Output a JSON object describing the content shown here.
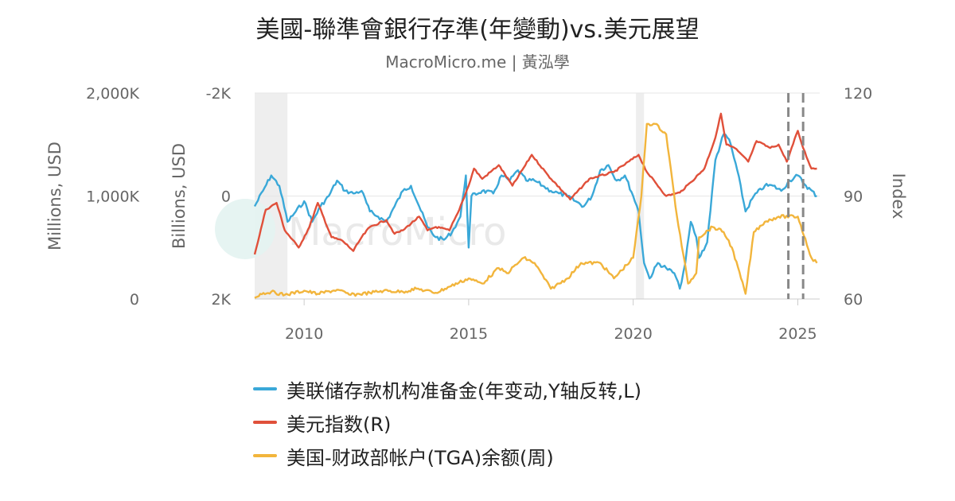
{
  "title": "美國-聯準會銀行存準(年變動)vs.美元展望",
  "subtitle": "MacroMicro.me | 黃泓學",
  "watermark": "MacroMicro",
  "colors": {
    "reserves": "#3aa8d8",
    "dxy": "#e0503a",
    "tga": "#f2b53c",
    "grid": "#e6e6e6",
    "recession": "#eeeeee",
    "axis_text": "#666666"
  },
  "chart_data": {
    "type": "line",
    "x_range": [
      "2008-07-01",
      "2025-09-01"
    ],
    "x_ticks": [
      "2010",
      "2015",
      "2020",
      "2025"
    ],
    "axes": {
      "left_outer": {
        "label": "Millions, USD",
        "range": [
          0,
          2000000
        ],
        "ticks": [
          "0",
          "1,000K",
          "2,000K"
        ]
      },
      "left_inner": {
        "label": "Billions, USD",
        "range": [
          -2000,
          2000
        ],
        "reversed": true,
        "ticks": [
          "-2K",
          "0",
          "2K"
        ]
      },
      "right": {
        "label": "Index",
        "range": [
          60,
          120
        ],
        "ticks": [
          "60",
          "90",
          "120"
        ]
      }
    },
    "recession_bands": [
      [
        "2008-07-01",
        "2009-06-30"
      ],
      [
        "2020-02-01",
        "2020-04-30"
      ]
    ],
    "vertical_markers": [
      "2024-09-18",
      "2025-03-01"
    ],
    "series": [
      {
        "name": "美联储存款机构准备金(年变动,Y轴反转,L)",
        "axis": "left_inner",
        "color": "#3aa8d8",
        "points": [
          [
            "2008-07",
            200
          ],
          [
            "2008-10",
            -100
          ],
          [
            "2009-01",
            -400
          ],
          [
            "2009-04",
            -200
          ],
          [
            "2009-07",
            500
          ],
          [
            "2009-10",
            300
          ],
          [
            "2010-01",
            100
          ],
          [
            "2010-04",
            500
          ],
          [
            "2010-07",
            200
          ],
          [
            "2010-10",
            0
          ],
          [
            "2011-01",
            -300
          ],
          [
            "2011-04",
            -100
          ],
          [
            "2011-07",
            -50
          ],
          [
            "2011-10",
            -100
          ],
          [
            "2012-01",
            300
          ],
          [
            "2012-04",
            400
          ],
          [
            "2012-07",
            500
          ],
          [
            "2012-10",
            200
          ],
          [
            "2013-01",
            -100
          ],
          [
            "2013-04",
            -200
          ],
          [
            "2013-07",
            200
          ],
          [
            "2013-10",
            600
          ],
          [
            "2014-01",
            800
          ],
          [
            "2014-04",
            850
          ],
          [
            "2014-07",
            700
          ],
          [
            "2014-10",
            400
          ],
          [
            "2014-12",
            -400
          ],
          [
            "2015-01",
            1000
          ],
          [
            "2015-02",
            0
          ],
          [
            "2015-06",
            -100
          ],
          [
            "2015-10",
            -50
          ],
          [
            "2016-01",
            -400
          ],
          [
            "2016-04",
            -300
          ],
          [
            "2016-07",
            -500
          ],
          [
            "2016-10",
            -300
          ],
          [
            "2017-01",
            -300
          ],
          [
            "2017-04",
            -200
          ],
          [
            "2017-07",
            -100
          ],
          [
            "2017-10",
            -50
          ],
          [
            "2018-01",
            0
          ],
          [
            "2018-04",
            100
          ],
          [
            "2018-07",
            200
          ],
          [
            "2018-10",
            0
          ],
          [
            "2019-01",
            -500
          ],
          [
            "2019-04",
            -600
          ],
          [
            "2019-07",
            -300
          ],
          [
            "2019-10",
            -400
          ],
          [
            "2020-01",
            0
          ],
          [
            "2020-03",
            300
          ],
          [
            "2020-05",
            1300
          ],
          [
            "2020-07",
            1600
          ],
          [
            "2020-10",
            1300
          ],
          [
            "2021-01",
            1400
          ],
          [
            "2021-04",
            1500
          ],
          [
            "2021-06",
            1800
          ],
          [
            "2021-08",
            1300
          ],
          [
            "2021-10",
            500
          ],
          [
            "2021-12",
            800
          ],
          [
            "2022-01",
            1200
          ],
          [
            "2022-04",
            900
          ],
          [
            "2022-07",
            -700
          ],
          [
            "2022-10",
            -1200
          ],
          [
            "2022-12",
            -1100
          ],
          [
            "2023-03",
            -500
          ],
          [
            "2023-06",
            300
          ],
          [
            "2023-09",
            0
          ],
          [
            "2024-01",
            -200
          ],
          [
            "2024-04",
            -200
          ],
          [
            "2024-07",
            -100
          ],
          [
            "2024-10",
            -300
          ],
          [
            "2025-01",
            -400
          ],
          [
            "2025-04",
            -200
          ],
          [
            "2025-08",
            0
          ]
        ]
      },
      {
        "name": "美元指数(R)",
        "axis": "right",
        "color": "#e0503a",
        "points": [
          [
            "2008-07",
            73
          ],
          [
            "2008-11",
            86
          ],
          [
            "2009-03",
            88
          ],
          [
            "2009-06",
            80
          ],
          [
            "2009-11",
            75
          ],
          [
            "2010-03",
            81
          ],
          [
            "2010-06",
            88
          ],
          [
            "2010-11",
            78
          ],
          [
            "2011-03",
            77
          ],
          [
            "2011-07",
            74
          ],
          [
            "2011-10",
            78
          ],
          [
            "2012-01",
            81
          ],
          [
            "2012-07",
            83
          ],
          [
            "2012-10",
            79
          ],
          [
            "2013-01",
            80
          ],
          [
            "2013-07",
            84
          ],
          [
            "2013-10",
            80
          ],
          [
            "2014-01",
            81
          ],
          [
            "2014-06",
            80
          ],
          [
            "2014-09",
            85
          ],
          [
            "2015-01",
            93
          ],
          [
            "2015-03",
            98
          ],
          [
            "2015-06",
            95
          ],
          [
            "2015-12",
            99
          ],
          [
            "2016-05",
            93
          ],
          [
            "2016-12",
            102
          ],
          [
            "2017-06",
            96
          ],
          [
            "2018-02",
            89
          ],
          [
            "2018-09",
            95
          ],
          [
            "2019-06",
            97
          ],
          [
            "2020-03",
            102
          ],
          [
            "2020-06",
            97
          ],
          [
            "2021-01",
            90
          ],
          [
            "2021-06",
            91
          ],
          [
            "2021-10",
            94
          ],
          [
            "2022-03",
            98
          ],
          [
            "2022-07",
            107
          ],
          [
            "2022-09",
            114
          ],
          [
            "2022-11",
            105
          ],
          [
            "2023-02",
            104
          ],
          [
            "2023-07",
            100
          ],
          [
            "2023-10",
            106
          ],
          [
            "2024-03",
            104
          ],
          [
            "2024-06",
            105
          ],
          [
            "2024-09",
            100
          ],
          [
            "2025-01",
            109
          ],
          [
            "2025-03",
            104
          ],
          [
            "2025-06",
            98
          ],
          [
            "2025-08",
            98
          ]
        ]
      },
      {
        "name": "美国-财政部帐户(TGA)余额(周)",
        "axis": "left_outer",
        "color": "#f2b53c",
        "points": [
          [
            "2008-07",
            10000
          ],
          [
            "2008-09",
            50000
          ],
          [
            "2009-01",
            70000
          ],
          [
            "2009-06",
            40000
          ],
          [
            "2010-01",
            80000
          ],
          [
            "2010-06",
            50000
          ],
          [
            "2011-01",
            90000
          ],
          [
            "2011-06",
            40000
          ],
          [
            "2012-01",
            60000
          ],
          [
            "2012-06",
            80000
          ],
          [
            "2013-01",
            70000
          ],
          [
            "2013-06",
            100000
          ],
          [
            "2014-01",
            60000
          ],
          [
            "2014-06",
            120000
          ],
          [
            "2015-01",
            200000
          ],
          [
            "2015-06",
            150000
          ],
          [
            "2015-12",
            300000
          ],
          [
            "2016-03",
            250000
          ],
          [
            "2016-09",
            400000
          ],
          [
            "2017-01",
            350000
          ],
          [
            "2017-07",
            100000
          ],
          [
            "2018-01",
            200000
          ],
          [
            "2018-06",
            350000
          ],
          [
            "2019-01",
            350000
          ],
          [
            "2019-06",
            200000
          ],
          [
            "2020-01",
            400000
          ],
          [
            "2020-04",
            1000000
          ],
          [
            "2020-06",
            1700000
          ],
          [
            "2020-09",
            1700000
          ],
          [
            "2021-01",
            1600000
          ],
          [
            "2021-05",
            800000
          ],
          [
            "2021-09",
            150000
          ],
          [
            "2021-12",
            250000
          ],
          [
            "2022-01",
            600000
          ],
          [
            "2022-06",
            700000
          ],
          [
            "2022-10",
            650000
          ],
          [
            "2023-01",
            500000
          ],
          [
            "2023-06",
            50000
          ],
          [
            "2023-09",
            650000
          ],
          [
            "2024-01",
            750000
          ],
          [
            "2024-06",
            800000
          ],
          [
            "2025-01",
            800000
          ],
          [
            "2025-06",
            400000
          ],
          [
            "2025-08",
            350000
          ]
        ]
      }
    ]
  }
}
